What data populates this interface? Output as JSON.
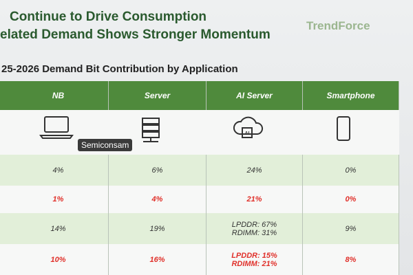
{
  "header": {
    "title_lines": [
      "Continue to Drive Consumption",
      "elated Demand Shows Stronger Momentum"
    ],
    "logo": "TrendForce",
    "subtitle": "25-2026 Demand Bit Contribution by Application"
  },
  "watermark": "Semiconsam",
  "icon_label": "AI",
  "table": {
    "columns": [
      "NB",
      "Server",
      "AI Server",
      "Smartphone"
    ],
    "rows": [
      [
        "4%",
        "6%",
        "24%",
        "0%"
      ],
      [
        "1%",
        "4%",
        "21%",
        "0%"
      ],
      [
        "14%",
        "19%",
        [
          "LPDDR: 67%",
          "RDIMM: 31%"
        ],
        "9%"
      ],
      [
        "10%",
        "16%",
        [
          "LPDDR: 15%",
          "RDIMM: 21%"
        ],
        "8%"
      ]
    ]
  }
}
